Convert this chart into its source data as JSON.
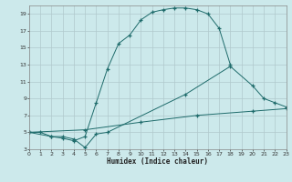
{
  "xlabel": "Humidex (Indice chaleur)",
  "background_color": "#cce9eb",
  "grid_color": "#b0c8cc",
  "line_color": "#1e6b6b",
  "xlim": [
    0,
    23
  ],
  "ylim": [
    3,
    20
  ],
  "xticks": [
    0,
    1,
    2,
    3,
    4,
    5,
    6,
    7,
    8,
    9,
    10,
    11,
    12,
    13,
    14,
    15,
    16,
    17,
    18,
    19,
    20,
    21,
    22,
    23
  ],
  "yticks": [
    3,
    5,
    7,
    9,
    11,
    13,
    15,
    17,
    19
  ],
  "curve1_x": [
    0,
    1,
    2,
    3,
    4,
    5,
    6,
    7,
    8,
    9,
    10,
    11,
    12,
    13,
    14,
    15,
    16,
    17,
    18
  ],
  "curve1_y": [
    5,
    5,
    4.5,
    4.3,
    4.0,
    4.5,
    8.5,
    12.5,
    15.5,
    16.5,
    18.3,
    19.2,
    19.5,
    19.7,
    19.7,
    19.5,
    19.0,
    17.3,
    13.0
  ],
  "curve2_x": [
    0,
    2,
    3,
    4,
    5,
    6,
    7,
    14,
    18,
    20,
    21,
    22,
    23
  ],
  "curve2_y": [
    5,
    4.5,
    4.5,
    4.2,
    3.2,
    4.8,
    5.0,
    9.5,
    12.8,
    10.5,
    9.0,
    8.5,
    8.0
  ],
  "curve3_x": [
    0,
    5,
    10,
    15,
    20,
    23
  ],
  "curve3_y": [
    5,
    5.3,
    6.2,
    7.0,
    7.5,
    7.8
  ]
}
